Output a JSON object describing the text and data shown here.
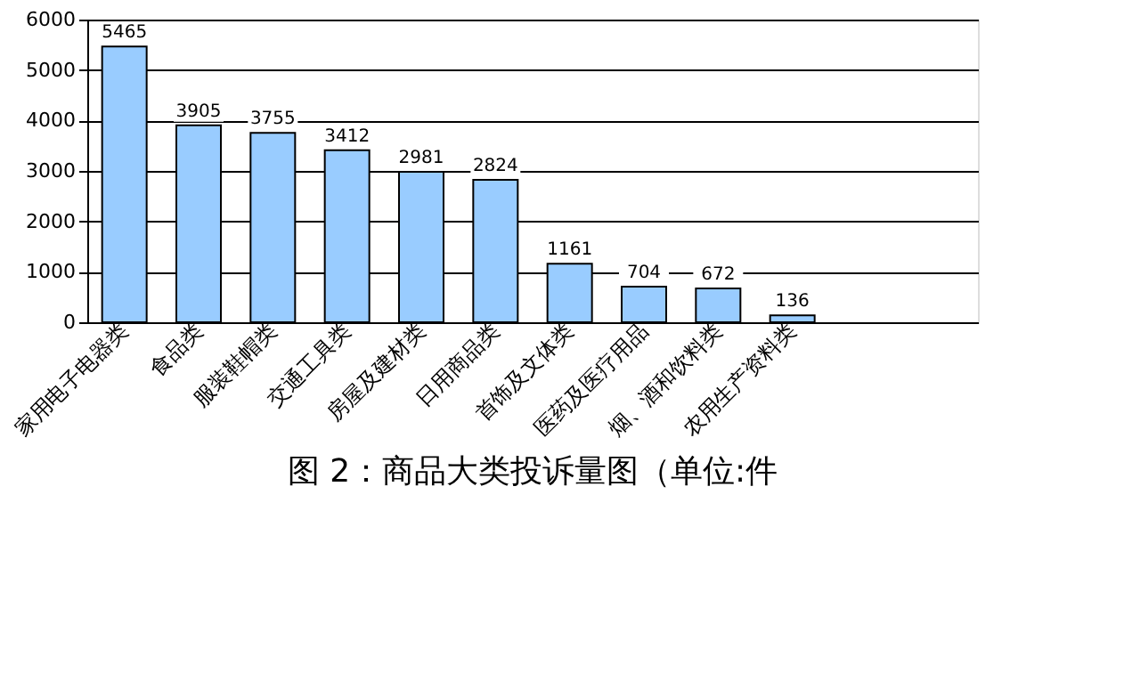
{
  "chart_data": {
    "type": "bar",
    "title": "图 2：商品大类投诉量图（单位:件",
    "categories": [
      "家用电子电器类",
      "食品类",
      "服装鞋帽类",
      "交通工具类",
      "房屋及建材类",
      "日用商品类",
      "首饰及文体类",
      "医药及医疗用品",
      "烟、酒和饮料类",
      "农用生产资料类",
      null,
      null
    ],
    "values": [
      5465,
      3905,
      3755,
      3412,
      2981,
      2824,
      1161,
      704,
      672,
      136,
      null,
      null
    ],
    "color": "#99ccff",
    "ylim": [
      0,
      6000
    ],
    "yticks": [
      0,
      1000,
      2000,
      3000,
      4000,
      5000,
      6000
    ],
    "grid": "y",
    "data_labels": true
  }
}
